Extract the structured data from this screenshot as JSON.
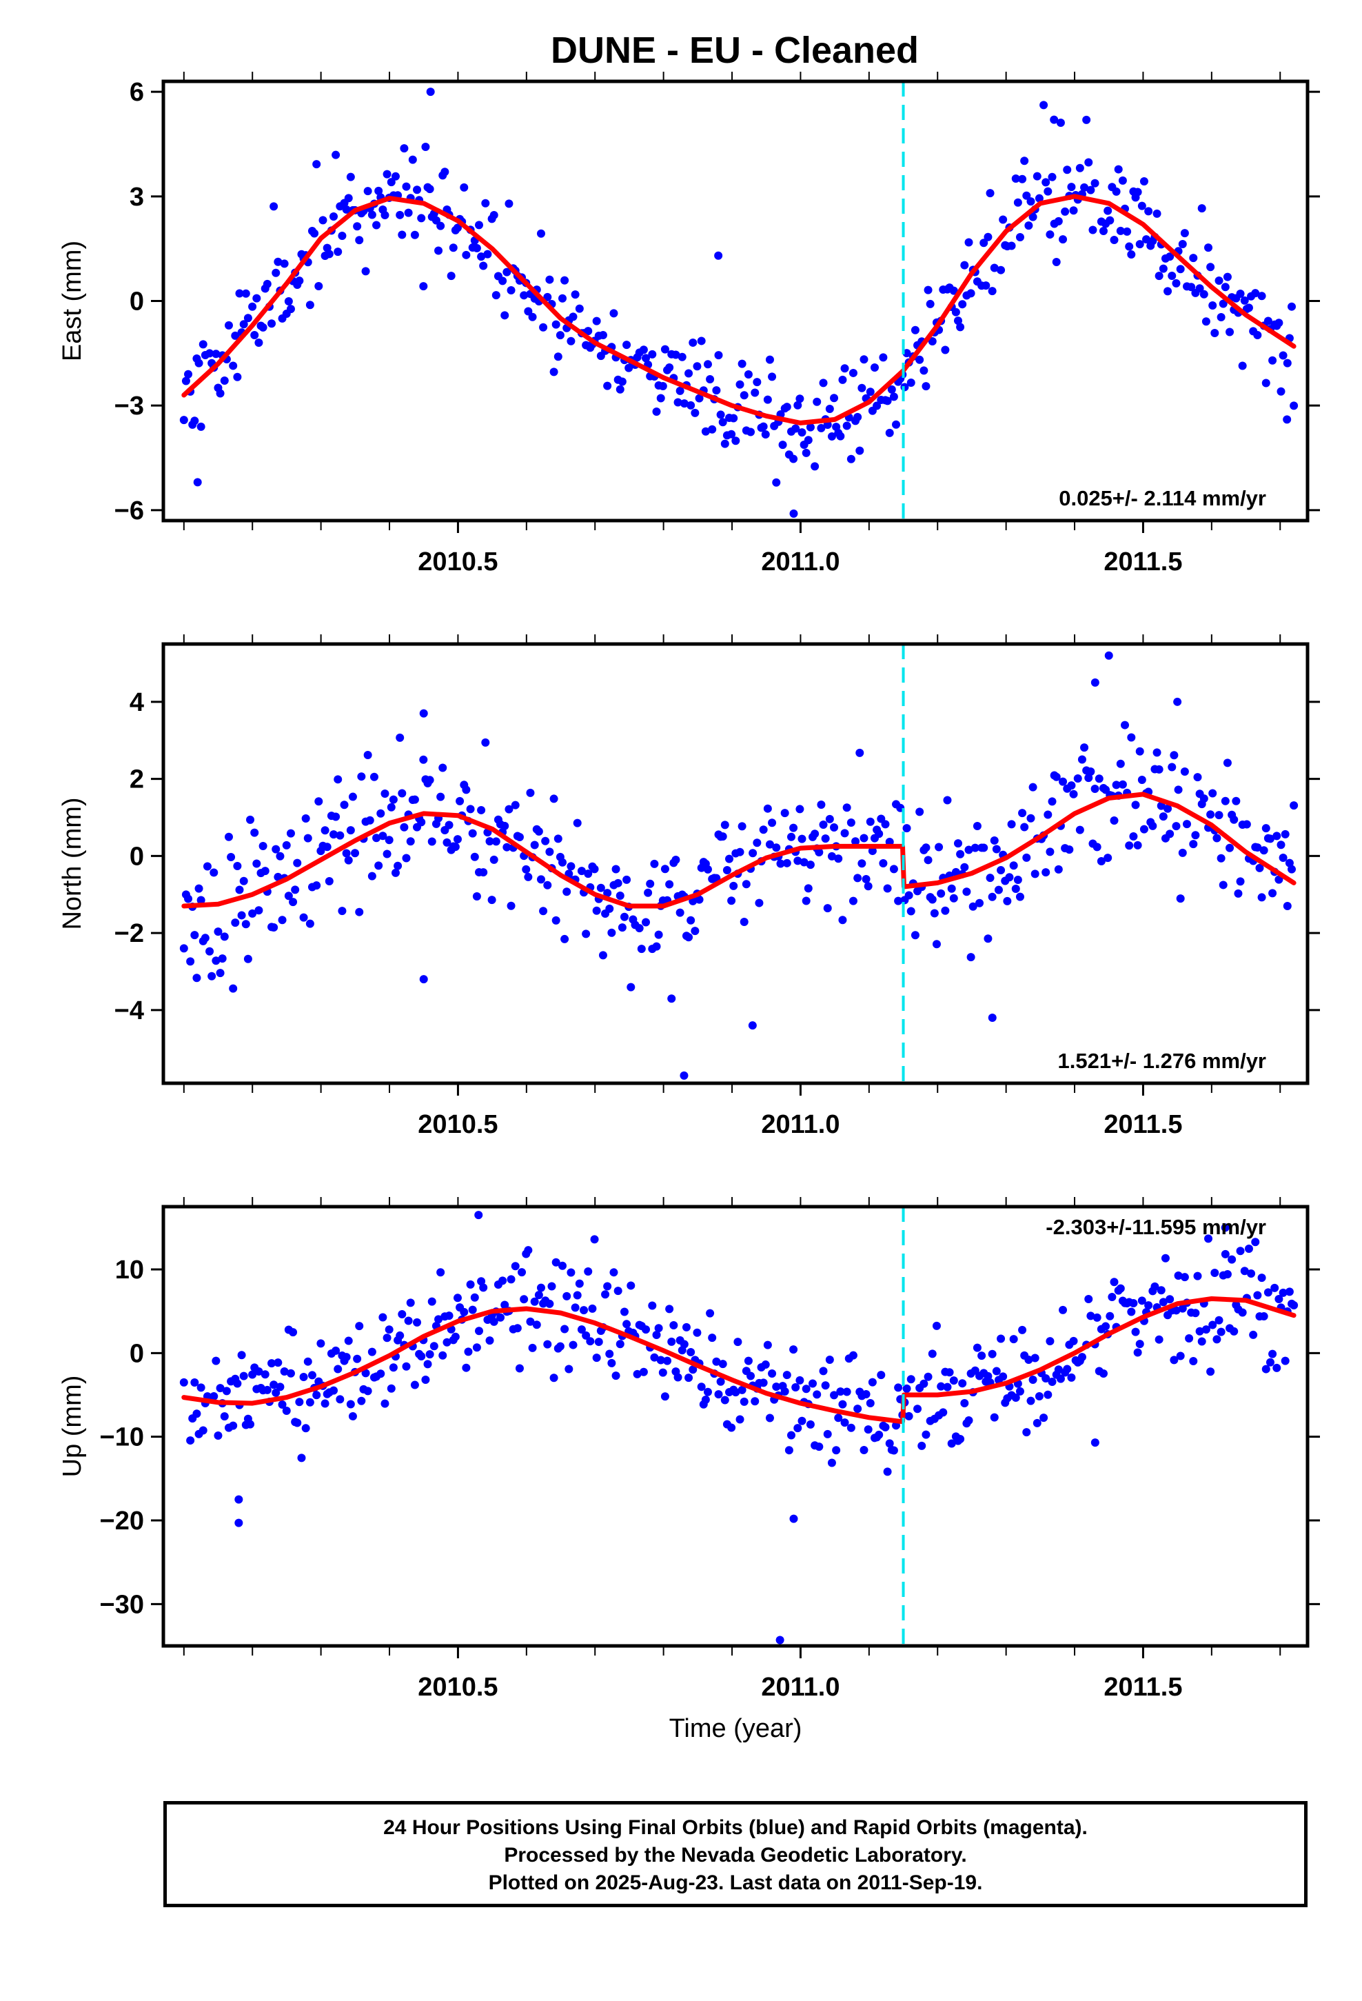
{
  "figure": {
    "title": "DUNE  - EU - Cleaned",
    "xlabel": "Time (year)",
    "footer": [
      "24 Hour Positions Using Final Orbits (blue) and Rapid Orbits (magenta).",
      "Processed by the Nevada Geodetic Laboratory.",
      "Plotted on 2025-Aug-23. Last data on 2011-Sep-19."
    ],
    "colors": {
      "points": "#0000ff",
      "fit": "#ff0000",
      "event_line": "#00e5ee",
      "axes": "#000000"
    }
  },
  "chart_data": [
    {
      "type": "scatter",
      "panel": "east",
      "ylabel": "East (mm)",
      "annotation": "0.025+/- 2.114 mm/yr",
      "xlim": [
        2010.07,
        2011.74
      ],
      "ylim": [
        -6.3,
        6.3
      ],
      "yticks": [
        -6,
        -3,
        0,
        3,
        6
      ],
      "ytick_labels": [
        "−6",
        "−3",
        "0",
        "3",
        "6"
      ],
      "xticks": [
        2010.5,
        2011.0,
        2011.5
      ],
      "xtick_labels": [
        "2010.5",
        "2011.0",
        "2011.5"
      ],
      "event_x": 2011.15,
      "fit": {
        "x": [
          2010.1,
          2010.15,
          2010.2,
          2010.25,
          2010.3,
          2010.35,
          2010.4,
          2010.45,
          2010.5,
          2010.55,
          2010.6,
          2010.65,
          2010.7,
          2010.75,
          2010.8,
          2010.85,
          2010.9,
          2010.95,
          2011.0,
          2011.05,
          2011.1,
          2011.15,
          2011.2,
          2011.25,
          2011.3,
          2011.35,
          2011.4,
          2011.45,
          2011.5,
          2011.55,
          2011.6,
          2011.65,
          2011.72
        ],
        "y": [
          -2.7,
          -1.8,
          -0.7,
          0.5,
          1.8,
          2.6,
          2.95,
          2.8,
          2.3,
          1.5,
          0.5,
          -0.5,
          -1.2,
          -1.7,
          -2.2,
          -2.6,
          -3.0,
          -3.3,
          -3.5,
          -3.4,
          -2.9,
          -2.0,
          -0.7,
          0.8,
          2.0,
          2.8,
          3.0,
          2.8,
          2.2,
          1.3,
          0.4,
          -0.4,
          -1.3
        ]
      },
      "scatter": {
        "n": 520,
        "seed": 11,
        "noise": 0.75,
        "outliers": [
          [
            2010.12,
            -5.2
          ],
          [
            2010.46,
            6.0
          ],
          [
            2010.99,
            -6.1
          ],
          [
            2011.37,
            5.2
          ],
          [
            2011.71,
            -3.4
          ],
          [
            2010.88,
            1.3
          ]
        ]
      }
    },
    {
      "type": "scatter",
      "panel": "north",
      "ylabel": "North (mm)",
      "annotation": "1.521+/- 1.276 mm/yr",
      "xlim": [
        2010.07,
        2011.74
      ],
      "ylim": [
        -5.9,
        5.5
      ],
      "yticks": [
        -4,
        -2,
        0,
        2,
        4
      ],
      "ytick_labels": [
        "−4",
        "−2",
        "0",
        "2",
        "4"
      ],
      "xticks": [
        2010.5,
        2011.0,
        2011.5
      ],
      "xtick_labels": [
        "2010.5",
        "2011.0",
        "2011.5"
      ],
      "event_x": 2011.15,
      "fit": {
        "x": [
          2010.1,
          2010.15,
          2010.2,
          2010.25,
          2010.3,
          2010.35,
          2010.4,
          2010.45,
          2010.5,
          2010.55,
          2010.6,
          2010.65,
          2010.7,
          2010.75,
          2010.8,
          2010.85,
          2010.9,
          2010.95,
          2011.0,
          2011.05,
          2011.1,
          2011.149,
          2011.151,
          2011.2,
          2011.25,
          2011.3,
          2011.35,
          2011.4,
          2011.45,
          2011.5,
          2011.55,
          2011.6,
          2011.65,
          2011.72
        ],
        "y": [
          -1.3,
          -1.25,
          -1.0,
          -0.6,
          -0.1,
          0.4,
          0.85,
          1.1,
          1.05,
          0.7,
          0.1,
          -0.5,
          -1.0,
          -1.3,
          -1.3,
          -1.0,
          -0.5,
          -0.05,
          0.2,
          0.25,
          0.25,
          0.25,
          -0.8,
          -0.7,
          -0.45,
          -0.05,
          0.5,
          1.1,
          1.5,
          1.6,
          1.3,
          0.8,
          0.1,
          -0.7
        ]
      },
      "scatter": {
        "n": 520,
        "seed": 23,
        "noise": 0.85,
        "outliers": [
          [
            2010.83,
            -5.7
          ],
          [
            2011.28,
            -4.2
          ],
          [
            2010.45,
            -3.2
          ],
          [
            2010.93,
            -4.4
          ],
          [
            2011.45,
            5.2
          ],
          [
            2010.45,
            3.7
          ],
          [
            2011.43,
            4.5
          ],
          [
            2011.55,
            4.0
          ]
        ]
      }
    },
    {
      "type": "scatter",
      "panel": "up",
      "ylabel": "Up (mm)",
      "annotation": "-2.303+/-11.595 mm/yr",
      "xlim": [
        2010.07,
        2011.74
      ],
      "ylim": [
        -35,
        17.5
      ],
      "yticks": [
        -30,
        -20,
        -10,
        0,
        10
      ],
      "ytick_labels": [
        "−30",
        "−20",
        "−10",
        "0",
        "10"
      ],
      "xticks": [
        2010.5,
        2011.0,
        2011.5
      ],
      "xtick_labels": [
        "2010.5",
        "2011.0",
        "2011.5"
      ],
      "event_x": 2011.15,
      "fit": {
        "x": [
          2010.1,
          2010.15,
          2010.2,
          2010.25,
          2010.3,
          2010.35,
          2010.4,
          2010.45,
          2010.5,
          2010.55,
          2010.6,
          2010.65,
          2010.7,
          2010.75,
          2010.8,
          2010.85,
          2010.9,
          2010.95,
          2011.0,
          2011.05,
          2011.1,
          2011.149,
          2011.151,
          2011.2,
          2011.25,
          2011.3,
          2011.35,
          2011.4,
          2011.45,
          2011.5,
          2011.55,
          2011.6,
          2011.65,
          2011.72
        ],
        "y": [
          -5.3,
          -5.9,
          -6.0,
          -5.3,
          -4.0,
          -2.3,
          -0.3,
          2.0,
          3.8,
          5.0,
          5.3,
          4.8,
          3.6,
          2.0,
          0.3,
          -1.5,
          -3.2,
          -4.8,
          -6.0,
          -6.9,
          -7.7,
          -8.2,
          -5.0,
          -5.0,
          -4.6,
          -3.6,
          -2.0,
          0.0,
          2.3,
          4.3,
          5.9,
          6.5,
          6.3,
          4.5
        ]
      },
      "scatter": {
        "n": 520,
        "seed": 37,
        "noise": 3.3,
        "outliers": [
          [
            2010.97,
            -34.3
          ],
          [
            2010.18,
            -20.3
          ],
          [
            2010.18,
            -17.5
          ],
          [
            2010.53,
            16.5
          ],
          [
            2011.43,
            -10.7
          ],
          [
            2010.99,
            -19.8
          ],
          [
            2011.62,
            15.0
          ]
        ]
      }
    }
  ]
}
